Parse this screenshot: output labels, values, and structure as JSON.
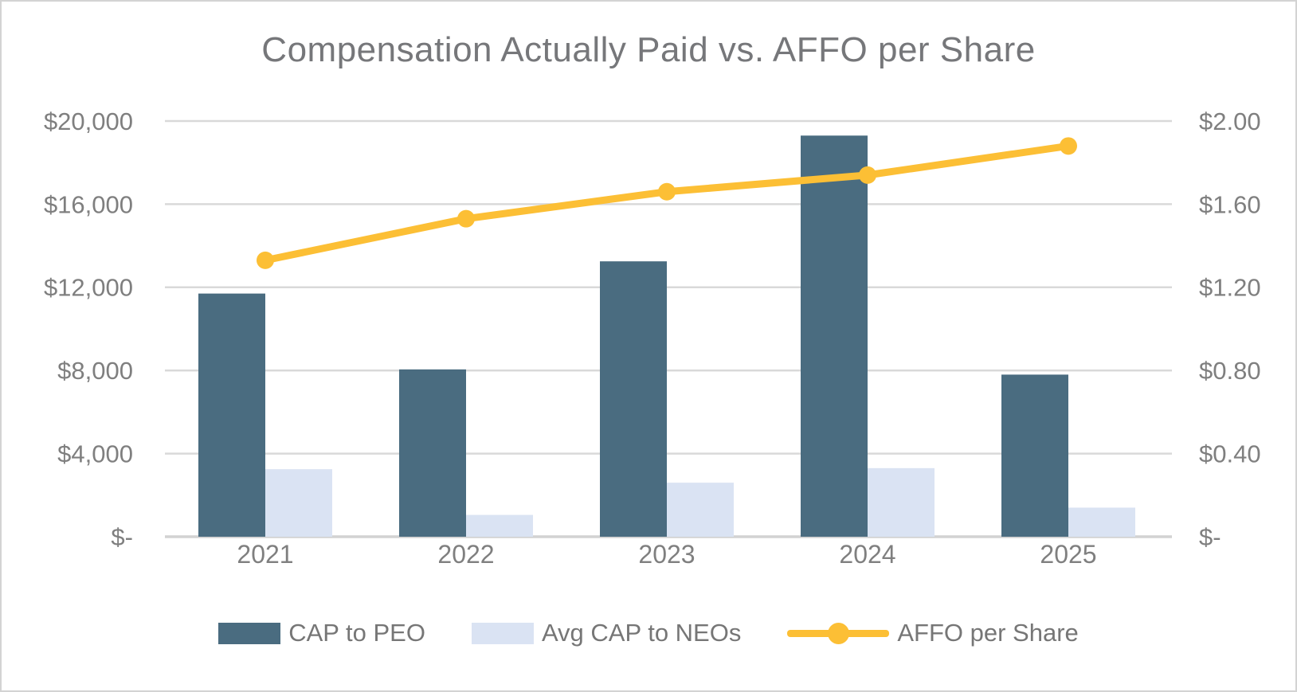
{
  "chart_data": {
    "type": "combo",
    "title": "Compensation Actually Paid vs. AFFO per Share",
    "categories": [
      "2021",
      "2022",
      "2023",
      "2024",
      "2025"
    ],
    "series": [
      {
        "name": "CAP to PEO",
        "type": "bar",
        "axis": "left",
        "color": "#4a6c80",
        "values": [
          11700,
          8050,
          13250,
          19300,
          7800
        ]
      },
      {
        "name": "Avg CAP to NEOs",
        "type": "bar",
        "axis": "left",
        "color": "#dae3f3",
        "values": [
          3250,
          1050,
          2600,
          3300,
          1400
        ]
      },
      {
        "name": "AFFO per Share",
        "type": "line",
        "axis": "right",
        "color": "#fcbf35",
        "values": [
          1.33,
          1.53,
          1.66,
          1.74,
          1.88
        ]
      }
    ],
    "left_axis": {
      "min": 0,
      "max": 20000,
      "step": 4000,
      "ticks": [
        "$-",
        "$4,000",
        "$8,000",
        "$12,000",
        "$16,000",
        "$20,000"
      ]
    },
    "right_axis": {
      "min": 0,
      "max": 2.0,
      "step": 0.4,
      "ticks": [
        "$-",
        "$0.40",
        "$0.80",
        "$1.20",
        "$1.60",
        "$2.00"
      ]
    },
    "grid": true,
    "legend_position": "bottom",
    "colors": {
      "grid": "#d9d9d9",
      "baseline": "#d2d2d2",
      "axis_text": "#7f7f7f",
      "title_text": "#76777a",
      "background": "#ffffff",
      "border": "#d3d3d3"
    }
  }
}
